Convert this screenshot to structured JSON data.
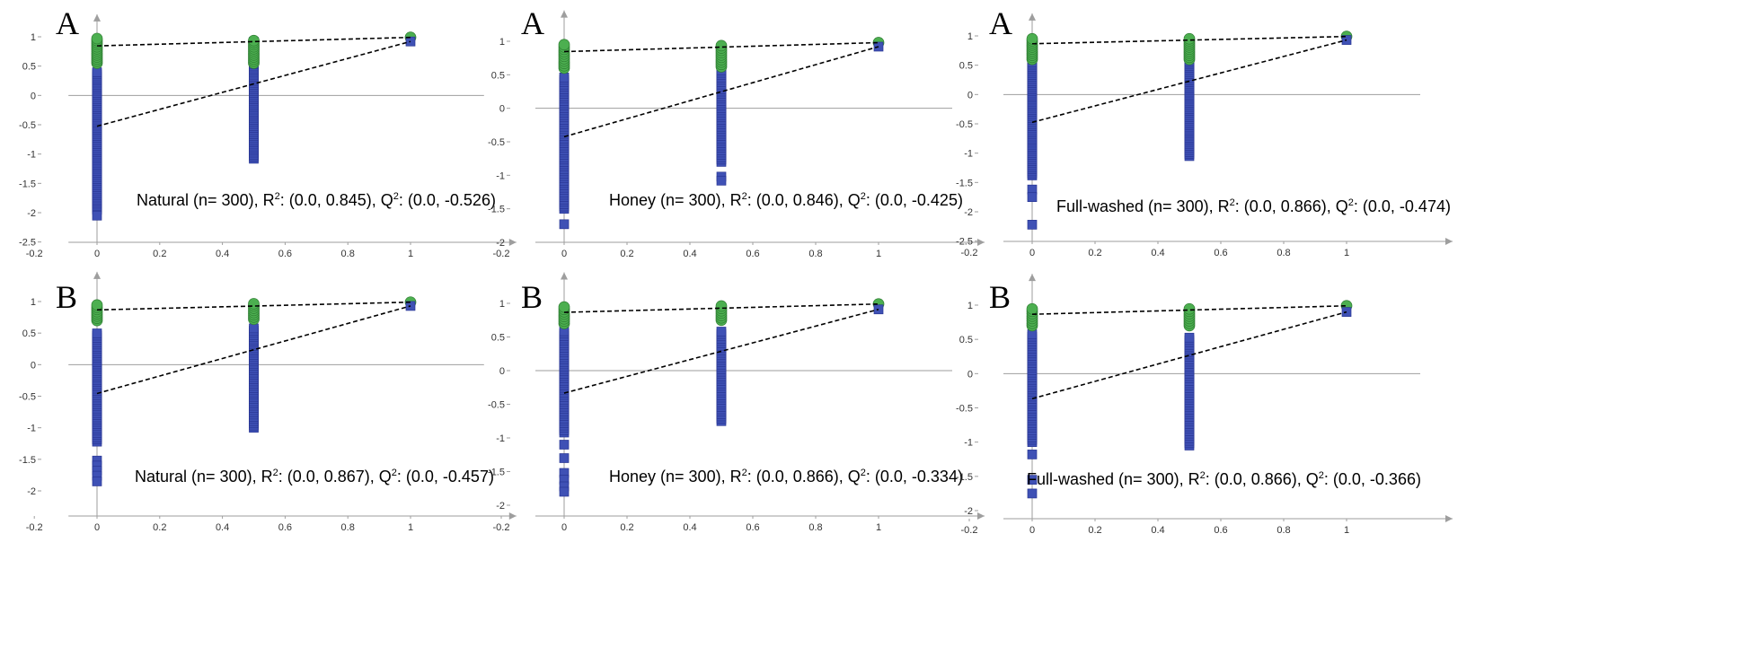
{
  "chart_data": [
    {
      "type": "scatter",
      "panel_label": "A",
      "group": "Natural",
      "caption_lead": "Natural (n= 300), R",
      "r2_text": ": (0.0, 0.845), Q",
      "q2_text": ": (0.0, -0.526)",
      "r2_intercept": 0.845,
      "q2_intercept": -0.526,
      "xlim": [
        -0.2,
        1.2
      ],
      "ylim": [
        -2.5,
        1.2
      ],
      "xticks": [
        -0.2,
        0,
        0.2,
        0.4,
        0.6,
        0.8,
        1
      ],
      "yticks": [
        -2.5,
        -2,
        -1.5,
        -1,
        -0.5,
        0,
        0.5,
        1
      ],
      "r2_range_0": [
        0.55,
        0.97
      ],
      "r2_range_05": [
        0.55,
        0.95
      ],
      "q2_range_0": [
        -1.95,
        0.42
      ],
      "q2_range_05": [
        -1.08,
        0.93
      ],
      "q2_outliers_0": [
        -2.05
      ],
      "q2_outliers_05": [],
      "r2_original": 0.99,
      "q2_original": 0.92
    },
    {
      "type": "scatter",
      "panel_label": "A",
      "group": "Honey",
      "caption_lead": "Honey (n= 300), R",
      "r2_text": ": (0.0, 0.846), Q",
      "q2_text": ": (0.0, -0.425)",
      "r2_intercept": 0.846,
      "q2_intercept": -0.425,
      "xlim": [
        -0.2,
        1.2
      ],
      "ylim": [
        -2,
        1.3
      ],
      "xticks": [
        -0.2,
        0,
        0.2,
        0.4,
        0.6,
        0.8,
        1
      ],
      "yticks": [
        -2,
        -1.5,
        -1,
        -0.5,
        0,
        0.5,
        1
      ],
      "r2_range_0": [
        0.6,
        0.96
      ],
      "r2_range_05": [
        0.62,
        0.96
      ],
      "q2_range_0": [
        -1.5,
        0.48
      ],
      "q2_range_05": [
        -0.8,
        0.58
      ],
      "q2_outliers_0": [
        -1.73
      ],
      "q2_outliers_05": [
        -1.02,
        -1.08
      ],
      "r2_original": 0.98,
      "q2_original": 0.92
    },
    {
      "type": "scatter",
      "panel_label": "A",
      "group": "Full-washed",
      "caption_lead": "Full-washed (n= 300), R",
      "r2_text": ": (0.0, 0.866), Q",
      "q2_text": ": (0.0, -0.474)",
      "r2_intercept": 0.866,
      "q2_intercept": -0.474,
      "xlim": [
        -0.2,
        1.2
      ],
      "ylim": [
        -2.5,
        1.2
      ],
      "xticks": [
        -0.2,
        0,
        0.2,
        0.4,
        0.6,
        0.8,
        1
      ],
      "yticks": [
        -2.5,
        -2,
        -1.5,
        -1,
        -0.5,
        0,
        0.5,
        1
      ],
      "r2_range_0": [
        0.6,
        0.97
      ],
      "r2_range_05": [
        0.6,
        0.95
      ],
      "q2_range_0": [
        -1.38,
        0.55
      ],
      "q2_range_05": [
        -1.05,
        0.58
      ],
      "q2_outliers_0": [
        -1.62,
        -1.75,
        -2.22
      ],
      "q2_outliers_05": [],
      "r2_original": 0.99,
      "q2_original": 0.93
    },
    {
      "type": "scatter",
      "panel_label": "B",
      "group": "Natural",
      "caption_lead": "Natural (n= 300), R",
      "r2_text": ": (0.0, 0.867), Q",
      "q2_text": ": (0.0, -0.457)",
      "r2_intercept": 0.867,
      "q2_intercept": -0.457,
      "xlim": [
        -0.2,
        1.2
      ],
      "ylim": [
        -2,
        1.3
      ],
      "xticks": [
        -0.2,
        0,
        0.2,
        0.4,
        0.6,
        0.8,
        1
      ],
      "yticks": [
        -2,
        -1.5,
        -1,
        -0.5,
        0,
        0.5,
        1
      ],
      "r2_range_0": [
        0.7,
        0.97
      ],
      "r2_range_05": [
        0.72,
        0.97
      ],
      "q2_range_0": [
        -1.22,
        0.52
      ],
      "q2_range_05": [
        -1.0,
        0.58
      ],
      "q2_outliers_0": [
        -1.52,
        -1.6,
        -1.68,
        -1.76,
        -1.85
      ],
      "q2_outliers_05": [],
      "r2_original": 0.99,
      "q2_original": 0.93
    },
    {
      "type": "scatter",
      "panel_label": "B",
      "group": "Honey",
      "caption_lead": "Honey (n= 300), R",
      "r2_text": ": (0.0, 0.866), Q",
      "q2_text": ": (0.0, -0.334)",
      "r2_intercept": 0.866,
      "q2_intercept": -0.334,
      "xlim": [
        -0.2,
        1.2
      ],
      "ylim": [
        -2,
        1.3
      ],
      "xticks": [
        -0.2,
        0,
        0.2,
        0.4,
        0.6,
        0.8,
        1
      ],
      "yticks": [
        -2,
        -1.5,
        -1,
        -0.5,
        0,
        0.5,
        1
      ],
      "r2_range_0": [
        0.7,
        0.97
      ],
      "r2_range_05": [
        0.75,
        0.97
      ],
      "q2_range_0": [
        -0.92,
        0.6
      ],
      "q2_range_05": [
        -0.75,
        0.58
      ],
      "q2_outliers_0": [
        -1.1,
        -1.3,
        -1.52,
        -1.62,
        -1.72,
        -1.8
      ],
      "q2_outliers_05": [],
      "r2_original": 0.99,
      "q2_original": 0.91
    },
    {
      "type": "scatter",
      "panel_label": "B",
      "group": "Full-washed",
      "caption_lead": "Full-washed (n= 300), R",
      "r2_text": ": (0.0, 0.866), Q",
      "q2_text": ": (0.0, -0.366)",
      "r2_intercept": 0.866,
      "q2_intercept": -0.366,
      "xlim": [
        -0.2,
        1.2
      ],
      "ylim": [
        -2,
        1.3
      ],
      "xticks": [
        -0.2,
        0,
        0.2,
        0.4,
        0.6,
        0.8,
        1
      ],
      "yticks": [
        -2,
        -1.5,
        -1,
        -0.5,
        0,
        0.5,
        1
      ],
      "r2_range_0": [
        0.7,
        0.97
      ],
      "r2_range_05": [
        0.7,
        0.97
      ],
      "q2_range_0": [
        -1.0,
        0.58
      ],
      "q2_range_05": [
        -1.05,
        0.55
      ],
      "q2_outliers_0": [
        -1.18,
        -1.55,
        -1.75
      ],
      "q2_outliers_05": [],
      "r2_original": 0.99,
      "q2_original": 0.9
    }
  ],
  "colors": {
    "r2_marker": "#4caf50",
    "r2_stroke": "#2e7d32",
    "q2_marker": "#3f51b5",
    "q2_stroke": "#283593",
    "axis": "#9e9e9e",
    "trend_line": "#000000"
  }
}
